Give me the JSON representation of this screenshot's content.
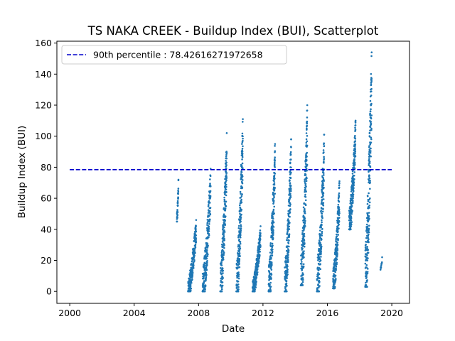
{
  "chart_data": {
    "type": "scatter",
    "title": "TS NAKA CREEK - Buildup Index (BUI), Scatterplot",
    "xlabel": "Date",
    "ylabel": "Buildup Index (BUI)",
    "xlim": [
      1999.2,
      2021.1
    ],
    "ylim": [
      -7.7,
      161.2
    ],
    "xticks": [
      2000,
      2004,
      2008,
      2012,
      2016,
      2020
    ],
    "xtick_labels": [
      "2000",
      "2004",
      "2008",
      "2012",
      "2016",
      "2020"
    ],
    "yticks": [
      0,
      20,
      40,
      60,
      80,
      100,
      120,
      140,
      160
    ],
    "ytick_labels": [
      "0",
      "20",
      "40",
      "60",
      "80",
      "100",
      "120",
      "140",
      "160"
    ],
    "grid": false,
    "legend": {
      "placement": "top-left",
      "entries": [
        "90th percentile : 78.42616271972658"
      ]
    },
    "reference_line": {
      "label": "90th percentile : 78.42616271972658",
      "value": 78.42616271972658,
      "x_range": [
        2000,
        2020
      ],
      "color": "#0000cc",
      "style": "dashed"
    },
    "series_color": "#1f77b4",
    "series": [
      {
        "seasons": [
          {
            "year_start": 2006.65,
            "year_end": 2006.75,
            "min": 45,
            "max": 72,
            "points": 38
          },
          {
            "year_start": 2007.35,
            "year_end": 2007.85,
            "min": 0,
            "max": 46,
            "points": 230
          },
          {
            "year_start": 2008.25,
            "year_end": 2008.75,
            "min": 0,
            "max": 79,
            "points": 230
          },
          {
            "year_start": 2009.35,
            "year_end": 2009.75,
            "min": 0,
            "max": 102,
            "points": 230
          },
          {
            "year_start": 2010.35,
            "year_end": 2010.75,
            "min": 0,
            "max": 111,
            "points": 230
          },
          {
            "year_start": 2011.35,
            "year_end": 2011.85,
            "min": 0,
            "max": 42,
            "points": 230
          },
          {
            "year_start": 2012.35,
            "year_end": 2012.75,
            "min": 0,
            "max": 95,
            "points": 230
          },
          {
            "year_start": 2013.35,
            "year_end": 2013.75,
            "min": 0,
            "max": 98,
            "points": 230
          },
          {
            "year_start": 2014.35,
            "year_end": 2014.75,
            "min": 4,
            "max": 120,
            "points": 230
          },
          {
            "year_start": 2015.35,
            "year_end": 2015.8,
            "min": 0,
            "max": 101,
            "points": 230
          },
          {
            "year_start": 2016.35,
            "year_end": 2016.75,
            "min": 2,
            "max": 71,
            "points": 230
          },
          {
            "year_start": 2017.35,
            "year_end": 2017.75,
            "min": 40,
            "max": 110,
            "points": 230
          },
          {
            "year_start": 2018.35,
            "year_end": 2018.75,
            "min": 3,
            "max": 154,
            "points": 230
          },
          {
            "year_start": 2019.3,
            "year_end": 2019.4,
            "min": 14,
            "max": 22,
            "points": 10
          }
        ]
      }
    ]
  }
}
